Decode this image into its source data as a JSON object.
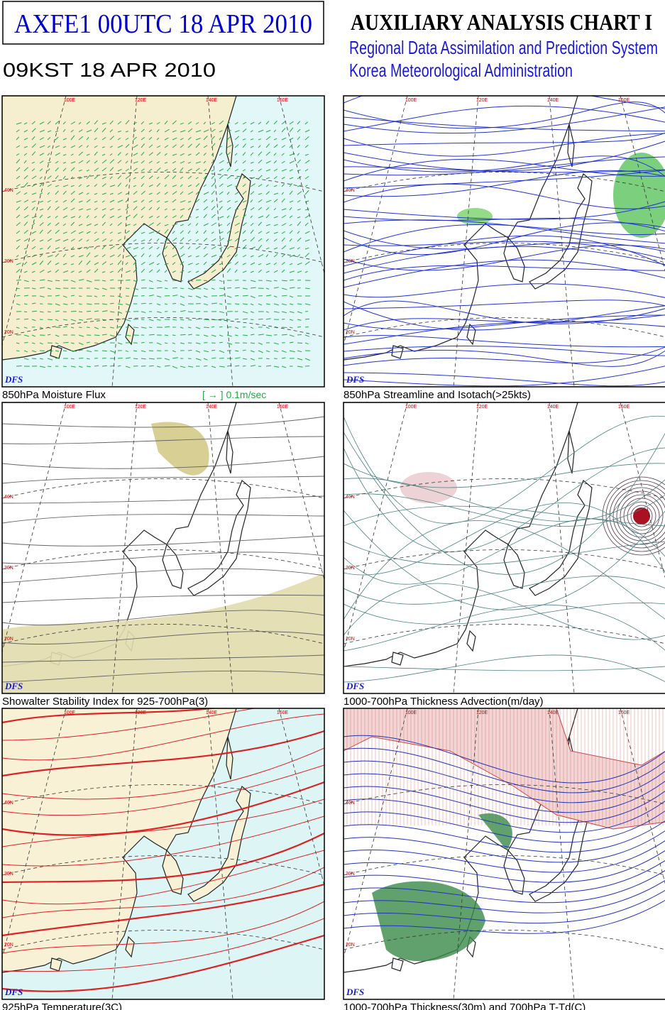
{
  "header": {
    "code": "AXFE1  00UTC 18 APR 2010",
    "local_time": "09KST 18 APR 2010",
    "title": "AUXILIARY ANALYSIS CHART I",
    "system": "Regional Data Assimilation and Prediction System",
    "agency": "Korea Meteorological Administration"
  },
  "panels": [
    {
      "caption": "850hPa Moisture Flux",
      "model": "DFS",
      "legend": "[ → ] 0.1m/sec"
    },
    {
      "caption": "850hPa Streamline and Isotach(>25kts)",
      "model": "DFS"
    },
    {
      "caption": "Showalter Stability Index for 925-700hPa(3)",
      "model": "DFS"
    },
    {
      "caption": "1000-700hPa Thickness Advection(m/day)",
      "model": "DFS"
    },
    {
      "caption": "925hPa Temperature(3C)",
      "model": "DFS"
    },
    {
      "caption": "1000-700hPa Thickness(30m) and 700hPa T-Td(C)",
      "model": "DFS"
    }
  ],
  "lon_labels": [
    "100E",
    "120E",
    "140E",
    "160E"
  ],
  "lat_labels": [
    "40N",
    "30N",
    "20N"
  ]
}
